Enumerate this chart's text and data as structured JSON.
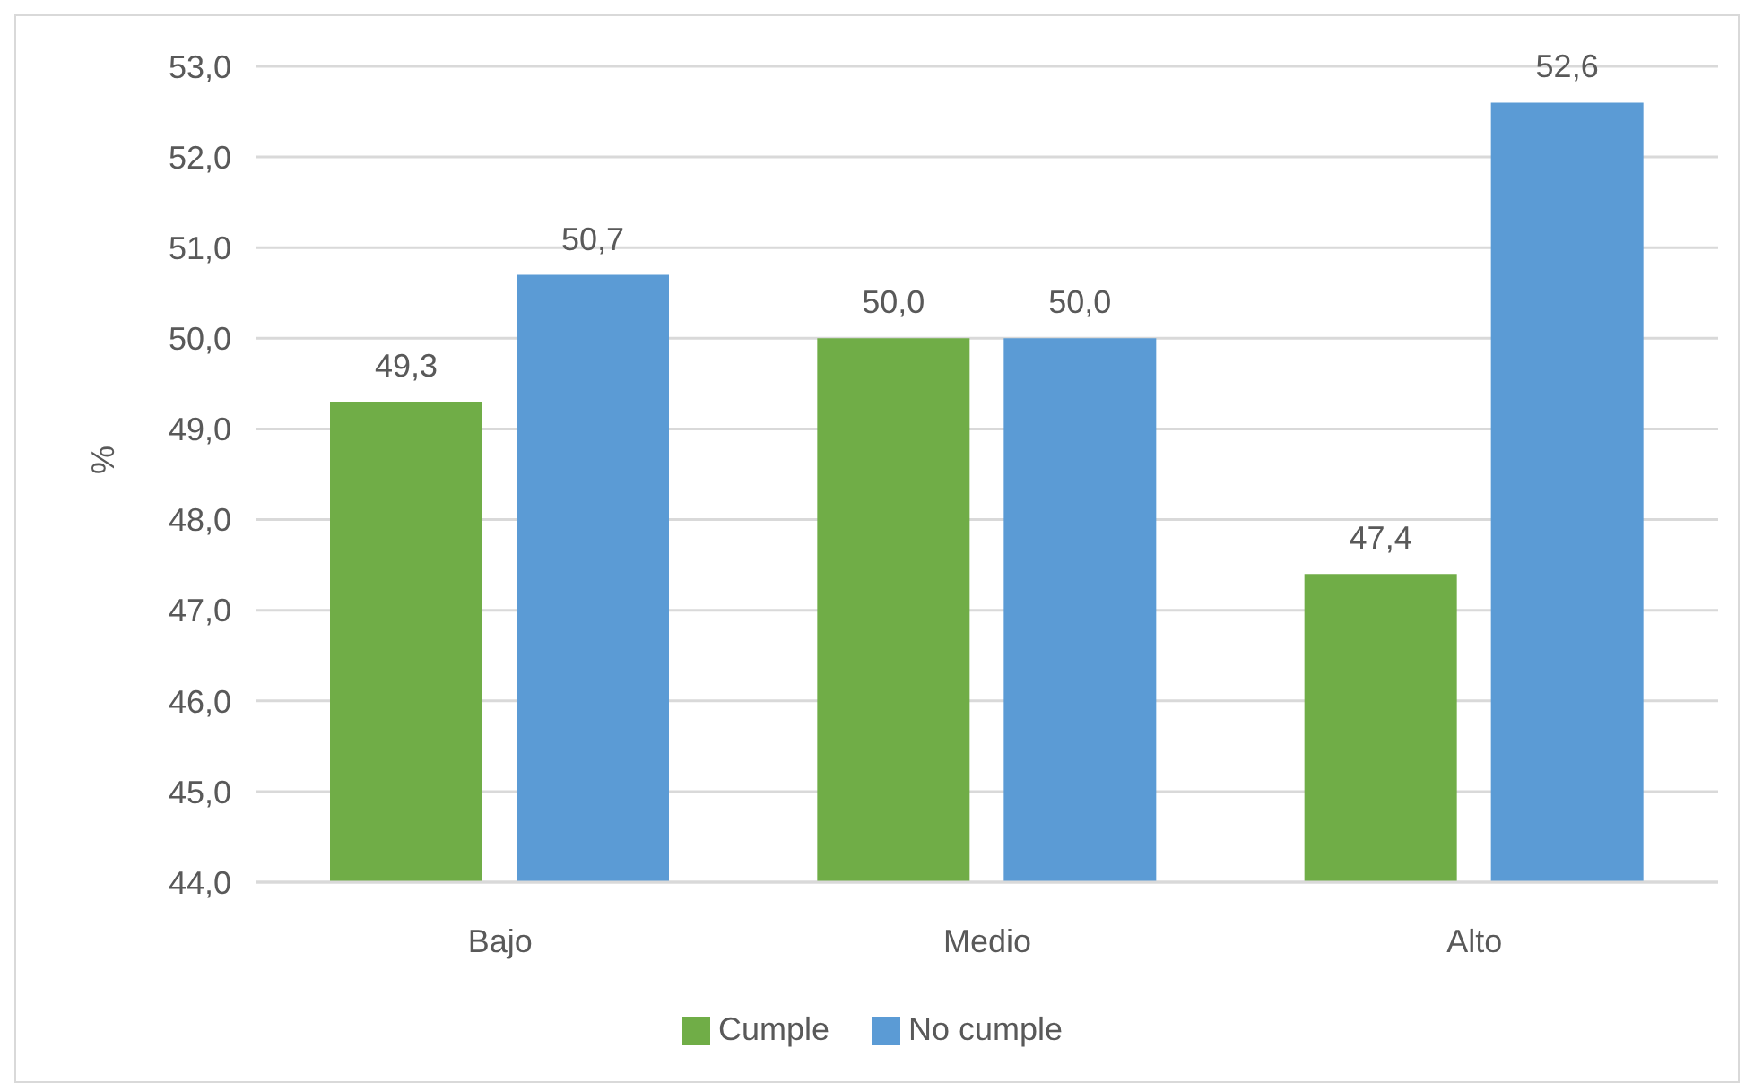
{
  "chart_data": {
    "type": "bar",
    "categories": [
      "Bajo",
      "Medio",
      "Alto"
    ],
    "series": [
      {
        "name": "Cumple",
        "color": "#70ad47",
        "values": [
          49.3,
          50.0,
          47.4
        ],
        "value_labels": [
          "49,3",
          "50,0",
          "47,4"
        ]
      },
      {
        "name": "No cumple",
        "color": "#5b9bd5",
        "values": [
          50.7,
          50.0,
          52.6
        ],
        "value_labels": [
          "50,7",
          "50,0",
          "52,6"
        ]
      }
    ],
    "ylabel": "%",
    "ylim": [
      44,
      53
    ],
    "yticks": [
      {
        "value": 44,
        "label": "44,0"
      },
      {
        "value": 45,
        "label": "45,0"
      },
      {
        "value": 46,
        "label": "46,0"
      },
      {
        "value": 47,
        "label": "47,0"
      },
      {
        "value": 48,
        "label": "48,0"
      },
      {
        "value": 49,
        "label": "49,0"
      },
      {
        "value": 50,
        "label": "50,0"
      },
      {
        "value": 51,
        "label": "51,0"
      },
      {
        "value": 52,
        "label": "52,0"
      },
      {
        "value": 53,
        "label": "53,0"
      }
    ],
    "grid": "y",
    "legend": "bottom"
  }
}
